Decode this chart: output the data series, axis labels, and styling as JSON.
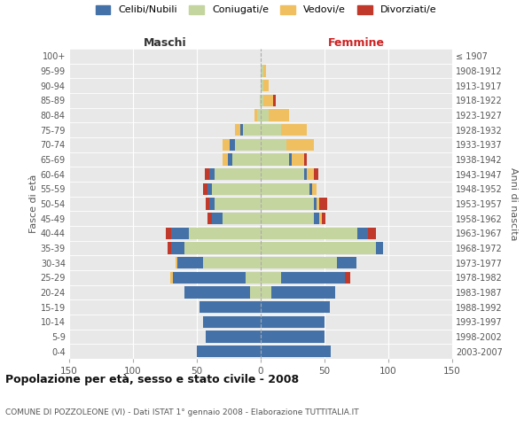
{
  "age_groups": [
    "0-4",
    "5-9",
    "10-14",
    "15-19",
    "20-24",
    "25-29",
    "30-34",
    "35-39",
    "40-44",
    "45-49",
    "50-54",
    "55-59",
    "60-64",
    "65-69",
    "70-74",
    "75-79",
    "80-84",
    "85-89",
    "90-94",
    "95-99",
    "100+"
  ],
  "birth_years": [
    "2003-2007",
    "1998-2002",
    "1993-1997",
    "1988-1992",
    "1983-1987",
    "1978-1982",
    "1973-1977",
    "1968-1972",
    "1963-1967",
    "1958-1962",
    "1953-1957",
    "1948-1952",
    "1943-1947",
    "1938-1942",
    "1933-1937",
    "1928-1932",
    "1923-1927",
    "1918-1922",
    "1913-1917",
    "1908-1912",
    "≤ 1907"
  ],
  "males": {
    "celibi": [
      50,
      43,
      45,
      48,
      52,
      57,
      20,
      10,
      14,
      8,
      4,
      4,
      4,
      4,
      4,
      2,
      0,
      0,
      0,
      0,
      0
    ],
    "coniugati": [
      0,
      0,
      0,
      0,
      8,
      12,
      45,
      60,
      56,
      30,
      36,
      38,
      36,
      22,
      20,
      14,
      3,
      1,
      0,
      0,
      0
    ],
    "vedovi": [
      0,
      0,
      0,
      0,
      0,
      2,
      2,
      0,
      0,
      0,
      0,
      0,
      0,
      4,
      6,
      4,
      2,
      0,
      0,
      0,
      0
    ],
    "divorziati": [
      0,
      0,
      0,
      0,
      0,
      0,
      0,
      3,
      4,
      4,
      3,
      3,
      4,
      0,
      0,
      0,
      0,
      0,
      0,
      0,
      0
    ]
  },
  "females": {
    "nubili": [
      55,
      50,
      50,
      54,
      50,
      50,
      15,
      6,
      8,
      4,
      2,
      2,
      2,
      2,
      0,
      0,
      0,
      0,
      0,
      0,
      0
    ],
    "coniugate": [
      0,
      0,
      0,
      0,
      8,
      16,
      60,
      90,
      76,
      42,
      42,
      38,
      34,
      22,
      20,
      16,
      6,
      2,
      2,
      2,
      0
    ],
    "vedove": [
      0,
      0,
      0,
      0,
      0,
      0,
      0,
      0,
      0,
      2,
      2,
      4,
      6,
      10,
      22,
      20,
      16,
      8,
      4,
      2,
      0
    ],
    "divorziate": [
      0,
      0,
      0,
      0,
      0,
      4,
      0,
      0,
      6,
      3,
      6,
      0,
      3,
      2,
      0,
      0,
      0,
      2,
      0,
      0,
      0
    ]
  },
  "colors": {
    "celibi_nubili": "#4472a8",
    "coniugati": "#c5d5a0",
    "vedovi": "#f0c060",
    "divorziati": "#c0392b"
  },
  "title": "Popolazione per età, sesso e stato civile - 2008",
  "subtitle": "COMUNE DI POZZOLEONE (VI) - Dati ISTAT 1° gennaio 2008 - Elaborazione TUTTITALIA.IT",
  "xlabel_left": "Maschi",
  "xlabel_right": "Femmine",
  "ylabel_left": "Fasce di età",
  "ylabel_right": "Anni di nascita",
  "xlim": 150,
  "bg_color": "#f0f0f0",
  "grid_color": "#cccccc",
  "plot_bg": "#e8e8e8"
}
